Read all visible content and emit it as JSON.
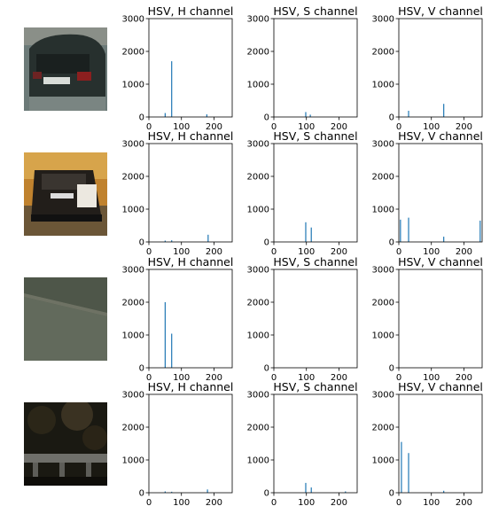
{
  "chart_data": [
    {
      "row": 1,
      "channel": "H",
      "type": "bar",
      "title": "HSV, H channel",
      "xlim": [
        0,
        256
      ],
      "ylim": [
        0,
        3000
      ],
      "xticks": [
        0,
        100,
        200
      ],
      "yticks": [
        0,
        1000,
        2000,
        3000
      ],
      "x": [
        50,
        70,
        178
      ],
      "values": [
        120,
        1700,
        80
      ]
    },
    {
      "row": 1,
      "channel": "S",
      "type": "bar",
      "title": "HSV, S channel",
      "xlim": [
        0,
        256
      ],
      "ylim": [
        0,
        3000
      ],
      "xticks": [
        0,
        100,
        200
      ],
      "yticks": [
        0,
        1000,
        2000,
        3000
      ],
      "x": [
        98,
        112
      ],
      "values": [
        150,
        70
      ]
    },
    {
      "row": 1,
      "channel": "V",
      "type": "bar",
      "title": "HSV, V channel",
      "xlim": [
        0,
        256
      ],
      "ylim": [
        0,
        3000
      ],
      "xticks": [
        0,
        100,
        200
      ],
      "yticks": [
        0,
        1000,
        2000,
        3000
      ],
      "x": [
        30,
        138
      ],
      "values": [
        190,
        400
      ]
    },
    {
      "row": 2,
      "channel": "H",
      "type": "bar",
      "title": "HSV, H channel",
      "xlim": [
        0,
        256
      ],
      "ylim": [
        0,
        3000
      ],
      "xticks": [
        0,
        100,
        200
      ],
      "yticks": [
        0,
        1000,
        2000,
        3000
      ],
      "x": [
        50,
        70,
        182
      ],
      "values": [
        40,
        50,
        220
      ]
    },
    {
      "row": 2,
      "channel": "S",
      "type": "bar",
      "title": "HSV, S channel",
      "xlim": [
        0,
        256
      ],
      "ylim": [
        0,
        3000
      ],
      "xticks": [
        0,
        100,
        200
      ],
      "yticks": [
        0,
        1000,
        2000,
        3000
      ],
      "x": [
        98,
        115
      ],
      "values": [
        600,
        440
      ]
    },
    {
      "row": 2,
      "channel": "V",
      "type": "bar",
      "title": "HSV, V channel",
      "xlim": [
        0,
        256
      ],
      "ylim": [
        0,
        3000
      ],
      "xticks": [
        0,
        100,
        200
      ],
      "yticks": [
        0,
        1000,
        2000,
        3000
      ],
      "x": [
        5,
        30,
        138,
        250
      ],
      "values": [
        680,
        740,
        160,
        650
      ]
    },
    {
      "row": 3,
      "channel": "H",
      "type": "bar",
      "title": "HSV, H channel",
      "xlim": [
        0,
        256
      ],
      "ylim": [
        0,
        3000
      ],
      "xticks": [
        0,
        100,
        200
      ],
      "yticks": [
        0,
        1000,
        2000,
        3000
      ],
      "x": [
        50,
        70
      ],
      "values": [
        2000,
        1040
      ]
    },
    {
      "row": 3,
      "channel": "S",
      "type": "bar",
      "title": "HSV, S channel",
      "xlim": [
        0,
        256
      ],
      "ylim": [
        0,
        3000
      ],
      "xticks": [
        0,
        100,
        200
      ],
      "yticks": [
        0,
        1000,
        2000,
        3000
      ],
      "x": [],
      "values": []
    },
    {
      "row": 3,
      "channel": "V",
      "type": "bar",
      "title": "HSV, V channel",
      "xlim": [
        0,
        256
      ],
      "ylim": [
        0,
        3000
      ],
      "xticks": [
        0,
        100,
        200
      ],
      "yticks": [
        0,
        1000,
        2000,
        3000
      ],
      "x": [],
      "values": []
    },
    {
      "row": 4,
      "channel": "H",
      "type": "bar",
      "title": "HSV, H channel",
      "xlim": [
        0,
        256
      ],
      "ylim": [
        0,
        3000
      ],
      "xticks": [
        0,
        100,
        200
      ],
      "yticks": [
        0,
        1000,
        2000,
        3000
      ],
      "x": [
        50,
        70,
        180
      ],
      "values": [
        40,
        30,
        100
      ]
    },
    {
      "row": 4,
      "channel": "S",
      "type": "bar",
      "title": "HSV, S channel",
      "xlim": [
        0,
        256
      ],
      "ylim": [
        0,
        3000
      ],
      "xticks": [
        0,
        100,
        200
      ],
      "yticks": [
        0,
        1000,
        2000,
        3000
      ],
      "x": [
        98,
        115,
        220
      ],
      "values": [
        300,
        160,
        40
      ]
    },
    {
      "row": 4,
      "channel": "V",
      "type": "bar",
      "title": "HSV, V channel",
      "xlim": [
        0,
        256
      ],
      "ylim": [
        0,
        3000
      ],
      "xticks": [
        0,
        100,
        200
      ],
      "yticks": [
        0,
        1000,
        2000,
        3000
      ],
      "x": [
        8,
        30,
        138
      ],
      "values": [
        1550,
        1210,
        60
      ]
    }
  ],
  "style": {
    "bar_color": "#1f77b4",
    "axis_color": "#000000"
  },
  "thumbnails": [
    {
      "name": "car-rear-dark-sedan",
      "colors": [
        "#6d7a79",
        "#2c3533",
        "#1a1f1e",
        "#8a8f88"
      ]
    },
    {
      "name": "car-rear-black-hatchback",
      "colors": [
        "#c7862b",
        "#2b2520",
        "#111111",
        "#8a6a3b"
      ]
    },
    {
      "name": "road-surface-gray",
      "colors": [
        "#5e6557",
        "#4b5247",
        "#6a6f62",
        "#3f463d"
      ]
    },
    {
      "name": "dark-foliage-guardrail",
      "colors": [
        "#1b1a14",
        "#3a3325",
        "#6b6a63",
        "#0d0c08"
      ]
    }
  ]
}
